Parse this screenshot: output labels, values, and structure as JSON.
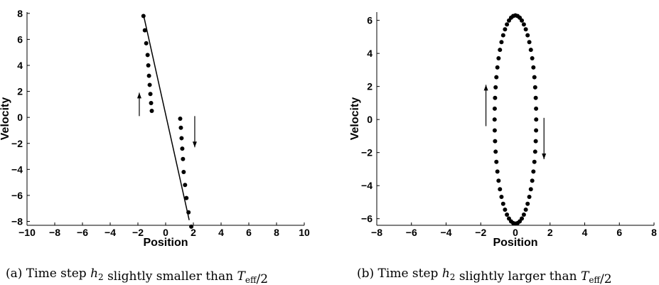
{
  "chart_data": [
    {
      "type": "scatter",
      "panel": "a",
      "caption": "(a) Time step h₂ slightly smaller than Tₑₒₒ/2",
      "xlabel": "Position",
      "ylabel": "Velocity",
      "xlim": [
        -10,
        10
      ],
      "ylim": [
        -8.3,
        8.1
      ],
      "xticks": [
        "−10",
        "−8",
        "−6",
        "−4",
        "−2",
        "0",
        "2",
        "4",
        "6",
        "8",
        "10"
      ],
      "yticks": [
        "−8",
        "−6",
        "−4",
        "−2",
        "0",
        "2",
        "4",
        "6",
        "8"
      ],
      "grid": false,
      "line": {
        "x": [
          -1.6,
          1.7
        ],
        "y": [
          7.9,
          -7.9
        ]
      },
      "series": [
        {
          "marker": "dot",
          "x": [
            -1.6,
            -1.5,
            -1.4,
            -1.3,
            -1.25,
            -1.2,
            -1.15,
            -1.1,
            -1.05,
            -1.0
          ],
          "y": [
            7.8,
            6.7,
            5.7,
            4.8,
            4.0,
            3.2,
            2.5,
            1.8,
            1.1,
            0.5
          ]
        },
        {
          "marker": "dot",
          "x": [
            1.05,
            1.1,
            1.15,
            1.2,
            1.25,
            1.3,
            1.4,
            1.5,
            1.65,
            1.85
          ],
          "y": [
            -0.1,
            -0.8,
            -1.6,
            -2.4,
            -3.2,
            -4.2,
            -5.2,
            -6.2,
            -7.3,
            -8.4
          ]
        }
      ],
      "arrows": [
        {
          "direction": "up",
          "x": -1.9,
          "y_from": 0.1,
          "y_to": 1.9
        },
        {
          "direction": "down",
          "x": 2.1,
          "y_from": 0.1,
          "y_to": -2.3
        }
      ]
    },
    {
      "type": "scatter",
      "panel": "b",
      "caption": "(b) Time step h₂ slightly larger than Tₑₒₒ/2",
      "xlabel": "Position",
      "ylabel": "Velocity",
      "xlim": [
        -8,
        8
      ],
      "ylim": [
        -6.4,
        6.5
      ],
      "xticks": [
        "−8",
        "−6",
        "−4",
        "−2",
        "0",
        "2",
        "4",
        "6",
        "8"
      ],
      "yticks": [
        "−6",
        "−4",
        "−2",
        "0",
        "2",
        "4",
        "6"
      ],
      "grid": false,
      "ellipse": {
        "a": 1.2,
        "b": 6.3,
        "points": 60
      },
      "arrows": [
        {
          "direction": "up",
          "x": -1.7,
          "y_from": -0.4,
          "y_to": 2.1
        },
        {
          "direction": "down",
          "x": 1.65,
          "y_from": 0.1,
          "y_to": -2.4
        }
      ]
    }
  ]
}
